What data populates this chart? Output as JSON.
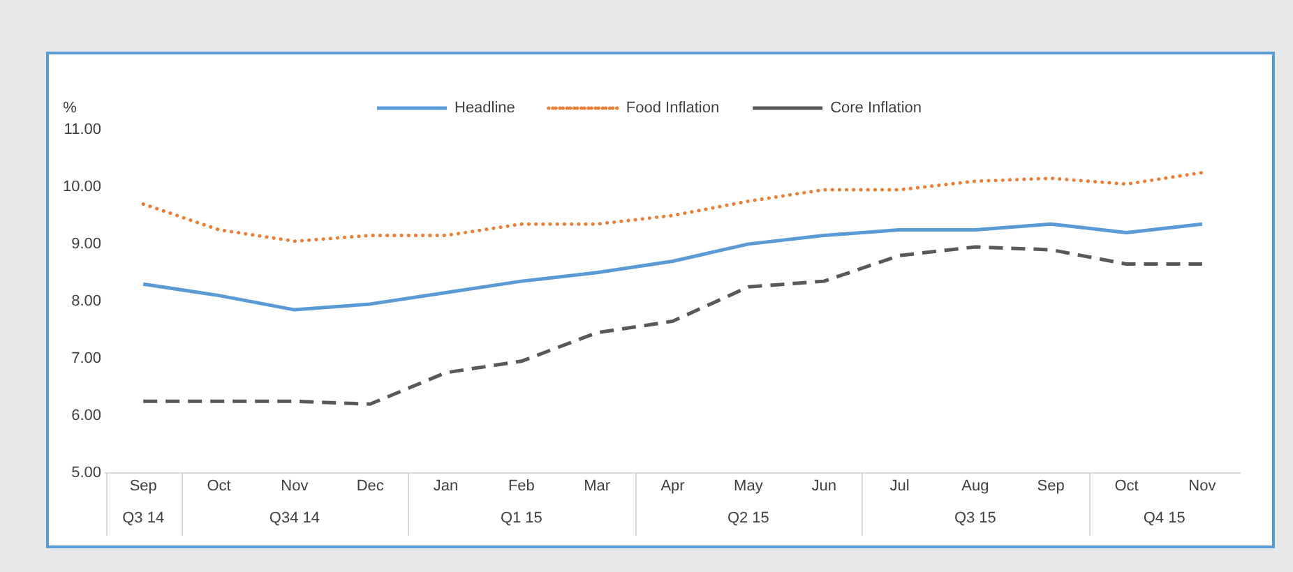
{
  "chart_data": {
    "type": "line",
    "ylabel": "%",
    "categories": [
      "Sep",
      "Oct",
      "Nov",
      "Dec",
      "Jan",
      "Feb",
      "Mar",
      "Apr",
      "May",
      "Jun",
      "Jul",
      "Aug",
      "Sep",
      "Oct",
      "Nov"
    ],
    "series": [
      {
        "name": "Headline",
        "color": "#5b9bd5",
        "line_style": "solid",
        "values": [
          8.3,
          8.1,
          7.85,
          7.95,
          8.15,
          8.35,
          8.5,
          8.7,
          9.0,
          9.15,
          9.25,
          9.25,
          9.35,
          9.2,
          9.35
        ]
      },
      {
        "name": "Food Inflation",
        "color": "#ed7d31",
        "line_style": "dotted",
        "values": [
          9.7,
          9.25,
          9.05,
          9.15,
          9.15,
          9.35,
          9.35,
          9.5,
          9.75,
          9.95,
          9.95,
          10.1,
          10.15,
          10.05,
          10.25
        ]
      },
      {
        "name": "Core Inflation",
        "color": "#595959",
        "line_style": "dashed",
        "values": [
          6.25,
          6.25,
          6.25,
          6.2,
          6.75,
          6.95,
          7.45,
          7.65,
          8.25,
          8.35,
          8.8,
          8.95,
          8.9,
          8.65,
          8.65
        ]
      }
    ],
    "ylim": [
      5,
      11
    ],
    "yticks": [
      {
        "value": 5,
        "label": "5.00"
      },
      {
        "value": 6,
        "label": "6.00"
      },
      {
        "value": 7,
        "label": "7.00"
      },
      {
        "value": 8,
        "label": "8.00"
      },
      {
        "value": 9,
        "label": "9.00"
      },
      {
        "value": 10,
        "label": "10.00"
      },
      {
        "value": 11,
        "label": "11.00"
      }
    ],
    "annotations": [
      "Q3 14",
      "Q34 14",
      "Q1 15",
      "Q2 15",
      "Q3 15",
      "Q4 15"
    ],
    "grid": false,
    "legend": "top",
    "marker": "none"
  }
}
